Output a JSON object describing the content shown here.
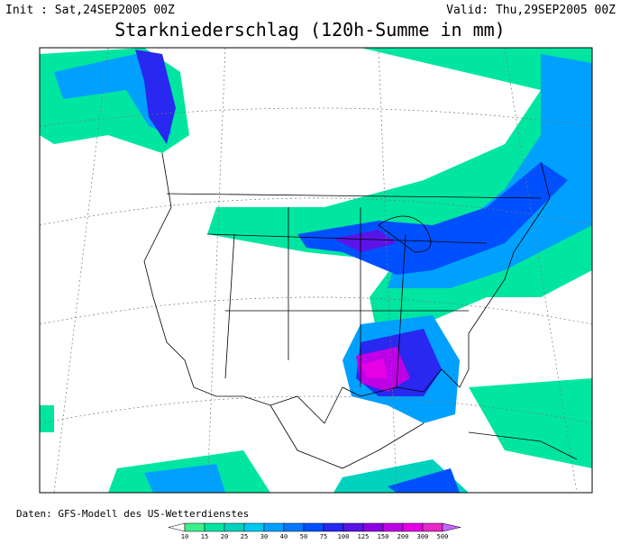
{
  "header": {
    "init": "Init : Sat,24SEP2005 00Z",
    "valid": "Valid: Thu,29SEP2005 00Z",
    "title": "Starkniederschlag (120h-Summe in mm)"
  },
  "footer": "Daten: GFS-Modell des US-Wetterdienstes",
  "legend": {
    "levels": [
      10,
      15,
      20,
      25,
      30,
      40,
      50,
      75,
      100,
      125,
      150,
      200,
      300,
      500
    ],
    "colors": [
      "#3cf08c",
      "#00e6a0",
      "#00d2be",
      "#00c8f0",
      "#00a0ff",
      "#0078ff",
      "#0050ff",
      "#2828f0",
      "#5a14e6",
      "#8c00e6",
      "#be00e6",
      "#e600e6",
      "#e628c8",
      "#c864ff"
    ]
  }
}
